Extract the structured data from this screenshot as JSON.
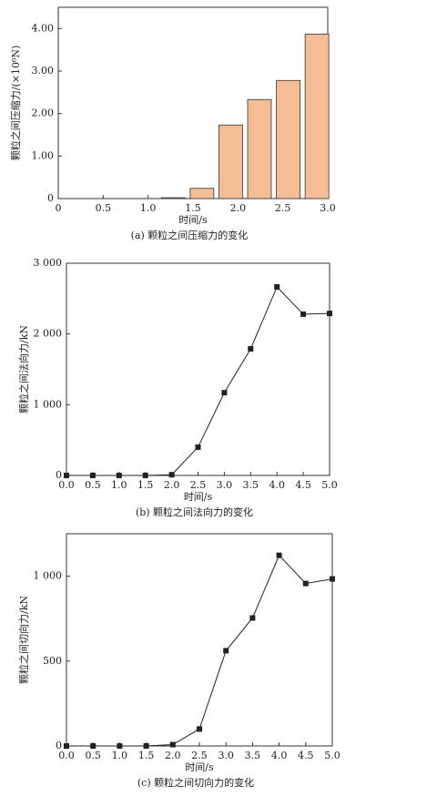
{
  "chart_data": [
    {
      "type": "bar",
      "title": "(a) 颗粒之间压缩力的变化",
      "xlabel": "时间/s",
      "ylabel": "颗粒之间压缩力/(×10⁶N)",
      "x": [
        1.28,
        1.6,
        1.92,
        2.24,
        2.56,
        2.88
      ],
      "values": [
        0.02,
        0.24,
        1.73,
        2.33,
        2.78,
        3.87
      ],
      "color": "#f5bd96",
      "xlim": [
        0,
        3
      ],
      "ylim": [
        0,
        4.5
      ],
      "xticks": [
        0,
        0.5,
        {
          "value": 1,
          "label": "1.0"
        },
        1.5,
        {
          "value": 2,
          "label": "2.0"
        },
        2.5,
        {
          "value": 3,
          "label": "3.0"
        }
      ],
      "yticks": [
        0,
        {
          "value": 1,
          "label": "1.00"
        },
        {
          "value": 2,
          "label": "2.00"
        },
        {
          "value": 3,
          "label": "3.00"
        },
        {
          "value": 4,
          "label": "4.00"
        }
      ]
    },
    {
      "type": "line",
      "title": "(b) 颗粒之间法向力的变化",
      "xlabel": "时间/s",
      "ylabel": "颗粒之间法向力/kN",
      "x": [
        0,
        0.5,
        1,
        1.5,
        2,
        2.5,
        3,
        3.5,
        4,
        4.5,
        5
      ],
      "values": [
        0,
        0,
        0,
        0,
        10,
        400,
        1170,
        1790,
        2665,
        2280,
        2290
      ],
      "color": "#222222",
      "xlim": [
        0,
        5
      ],
      "ylim": [
        0,
        3000
      ],
      "xticks": [
        {
          "value": 0,
          "label": "0.0"
        },
        0.5,
        {
          "value": 1,
          "label": "1.0"
        },
        1.5,
        {
          "value": 2,
          "label": "2.0"
        },
        2.5,
        {
          "value": 3,
          "label": "3.0"
        },
        3.5,
        {
          "value": 4,
          "label": "4.0"
        },
        4.5,
        {
          "value": 5,
          "label": "5.0"
        }
      ],
      "yticks": [
        0,
        {
          "value": 1000,
          "label": "1 000"
        },
        {
          "value": 2000,
          "label": "2 000"
        },
        {
          "value": 3000,
          "label": "3 000"
        }
      ]
    },
    {
      "type": "line",
      "title": "(c) 颗粒之间切向力的变化",
      "xlabel": "时间/s",
      "ylabel": "颗粒之间切向力/kN",
      "x": [
        0,
        0.5,
        1,
        1.5,
        2,
        2.5,
        3,
        3.5,
        4,
        4.5,
        5
      ],
      "values": [
        0,
        0,
        0,
        0,
        8,
        100,
        561,
        754,
        1123,
        957,
        984
      ],
      "color": "#222222",
      "xlim": [
        0,
        5
      ],
      "ylim": [
        0,
        1250
      ],
      "xticks": [
        {
          "value": 0,
          "label": "0.0"
        },
        0.5,
        {
          "value": 1,
          "label": "1.0"
        },
        1.5,
        {
          "value": 2,
          "label": "2.0"
        },
        2.5,
        {
          "value": 3,
          "label": "3.0"
        },
        3.5,
        {
          "value": 4,
          "label": "4.0"
        },
        4.5,
        {
          "value": 5,
          "label": "5.0"
        }
      ],
      "yticks": [
        0,
        500,
        {
          "value": 1000,
          "label": "1 000"
        }
      ]
    }
  ]
}
